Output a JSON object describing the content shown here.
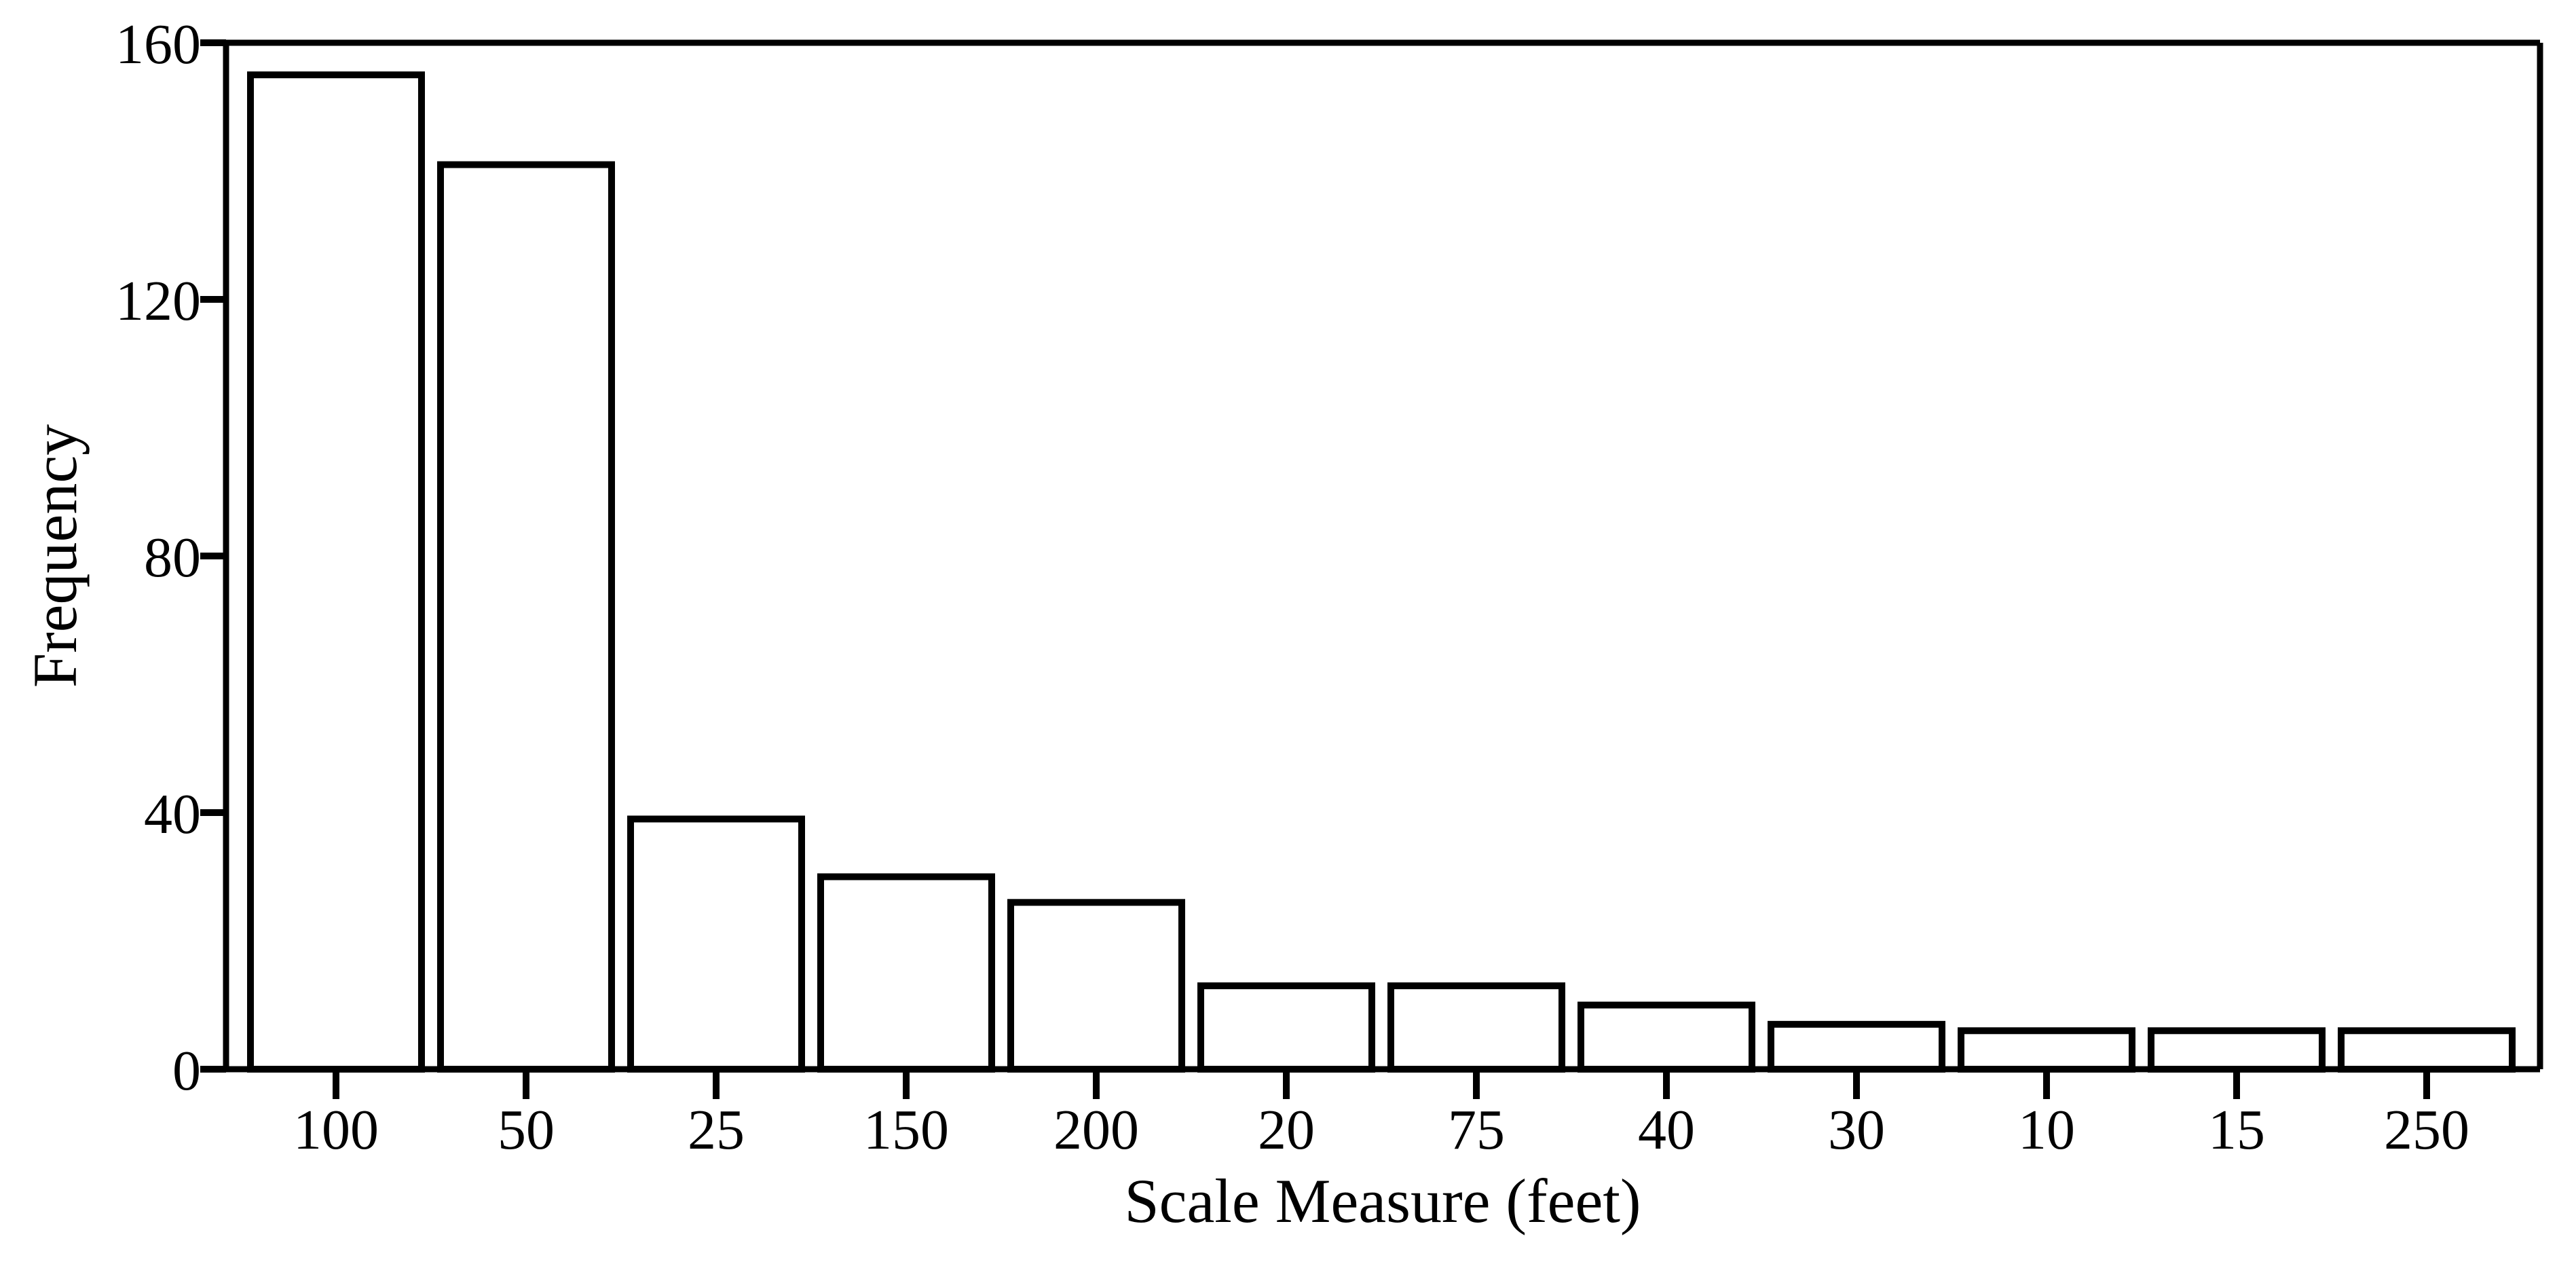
{
  "chart_data": {
    "type": "bar",
    "title": "",
    "xlabel": "Scale Measure (feet)",
    "ylabel": "Frequency",
    "categories": [
      "100",
      "50",
      "25",
      "150",
      "200",
      "20",
      "75",
      "40",
      "30",
      "10",
      "15",
      "250"
    ],
    "values": [
      155,
      141,
      39,
      30,
      26,
      13,
      13,
      10,
      7,
      6,
      6,
      6
    ],
    "ylim": [
      0,
      160
    ],
    "yticks": [
      0,
      40,
      80,
      120,
      160
    ],
    "grid": "off",
    "legend": "none",
    "frame": "full-box",
    "bar_fill": "#ffffff",
    "bar_stroke": "#000000",
    "axis_color": "#000000",
    "text_color": "#000000"
  }
}
